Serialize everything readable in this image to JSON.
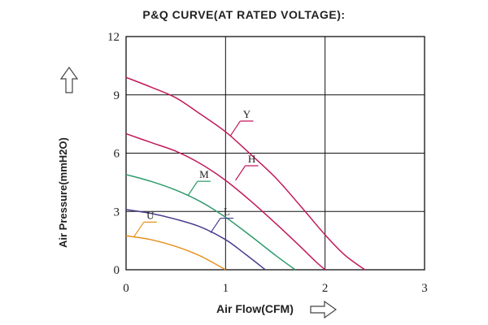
{
  "chart_data": {
    "type": "line",
    "title": "P&Q CURVE(AT RATED VOLTAGE):",
    "xlabel": "Air Flow(CFM)",
    "ylabel": "Air Pressure(mmH2O)",
    "xlim": [
      0,
      3
    ],
    "ylim": [
      0,
      12
    ],
    "xticks": [
      "0",
      "1",
      "2",
      "3"
    ],
    "yticks": [
      "0",
      "3",
      "6",
      "9",
      "12"
    ],
    "grid": true,
    "series": [
      {
        "name": "Y",
        "color": "#c2185b",
        "x": [
          0,
          0.25,
          0.5,
          0.75,
          1.0,
          1.25,
          1.5,
          1.75,
          2.0,
          2.2,
          2.4
        ],
        "y": [
          9.9,
          9.4,
          8.85,
          8.0,
          7.1,
          5.95,
          4.75,
          3.3,
          1.8,
          0.75,
          0
        ]
      },
      {
        "name": "H",
        "color": "#c2185b",
        "x": [
          0,
          0.25,
          0.5,
          0.75,
          1.0,
          1.25,
          1.5,
          1.75,
          1.9,
          2.0
        ],
        "y": [
          7.0,
          6.55,
          6.1,
          5.45,
          4.6,
          3.55,
          2.4,
          1.2,
          0.45,
          0
        ]
      },
      {
        "name": "M",
        "color": "#2e9b6b",
        "x": [
          0,
          0.25,
          0.5,
          0.75,
          1.0,
          1.25,
          1.5,
          1.7
        ],
        "y": [
          4.9,
          4.55,
          4.1,
          3.5,
          2.7,
          1.75,
          0.75,
          0
        ]
      },
      {
        "name": "L",
        "color": "#4a3d8f",
        "x": [
          0,
          0.25,
          0.5,
          0.75,
          1.0,
          1.2,
          1.4
        ],
        "y": [
          3.1,
          2.9,
          2.6,
          2.2,
          1.55,
          0.8,
          0
        ]
      },
      {
        "name": "U",
        "color": "#e8901e",
        "x": [
          0,
          0.25,
          0.5,
          0.75,
          1.0
        ],
        "y": [
          1.75,
          1.55,
          1.2,
          0.7,
          0
        ]
      }
    ],
    "labels": [
      {
        "text": "Y",
        "series": "Y",
        "anchor_x": 1.05,
        "anchor_y": 6.9
      },
      {
        "text": "H",
        "series": "H",
        "anchor_x": 1.1,
        "anchor_y": 4.6
      },
      {
        "text": "M",
        "series": "M",
        "anchor_x": 0.62,
        "anchor_y": 3.8
      },
      {
        "text": "L",
        "series": "L",
        "anchor_x": 0.85,
        "anchor_y": 1.9
      },
      {
        "text": "U",
        "series": "U",
        "anchor_x": 0.08,
        "anchor_y": 1.7
      }
    ]
  }
}
